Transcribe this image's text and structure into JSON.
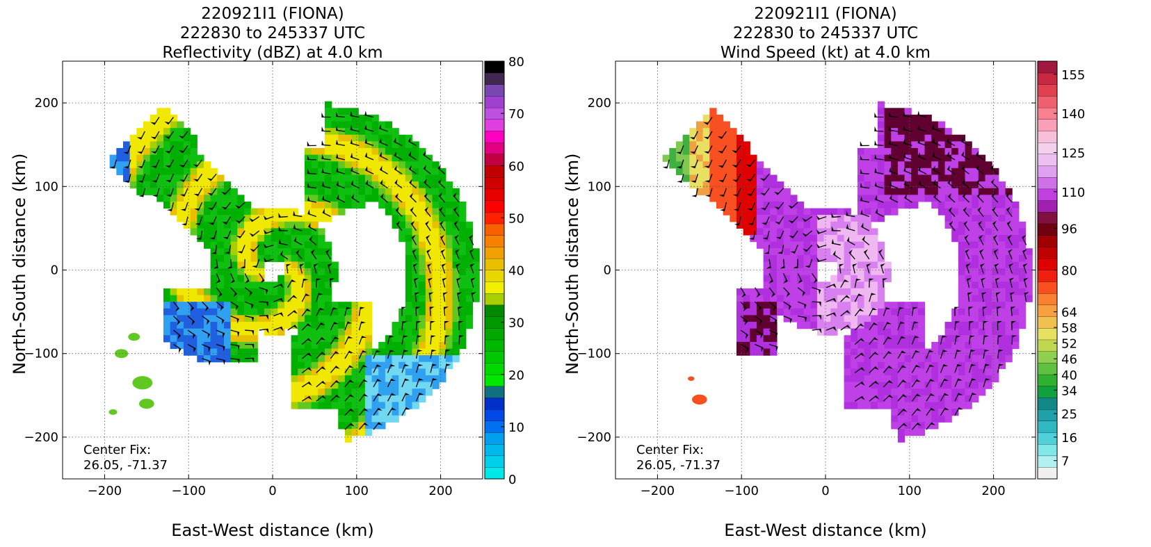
{
  "chart_data": [
    {
      "type": "heatmap",
      "title_lines": [
        "220921I1 (FIONA)",
        "222830 to 245337 UTC",
        "Reflectivity (dBZ) at 4.0 km"
      ],
      "xlabel": "East-West distance (km)",
      "ylabel": "North-South distance (km)",
      "xlim": [
        -250,
        250
      ],
      "ylim": [
        -250,
        250
      ],
      "xticks": [
        -200,
        -100,
        0,
        100,
        200
      ],
      "yticks": [
        -200,
        -100,
        0,
        100,
        200
      ],
      "grid": true,
      "annotation": [
        "Center Fix:",
        "26.05, -71.37"
      ],
      "colorbar": {
        "label_values": [
          0,
          10,
          20,
          30,
          40,
          50,
          60,
          70,
          80
        ],
        "range": [
          0,
          80
        ],
        "colors": [
          "#00e8e8",
          "#00d0ea",
          "#00b8ec",
          "#00a0f0",
          "#0070f0",
          "#0048e8",
          "#0030c8",
          "#107080",
          "#00e800",
          "#00d800",
          "#00c800",
          "#00b800",
          "#00a800",
          "#009800",
          "#008800",
          "#a8d000",
          "#f0f000",
          "#e8d800",
          "#e8c000",
          "#f0a000",
          "#f88000",
          "#f86000",
          "#ff2000",
          "#ff0000",
          "#e80000",
          "#d00000",
          "#c00000",
          "#c00040",
          "#e00080",
          "#ff00c0",
          "#e040e0",
          "#c050e0",
          "#a040d0",
          "#7848b0",
          "#402850",
          "#000000"
        ]
      },
      "field_colors": [
        "#00b000",
        "#10c010",
        "#60c820",
        "#a8d000",
        "#f0e800",
        "#e8c000",
        "#2060e0",
        "#30a0f0",
        "#70d8f0"
      ]
    },
    {
      "type": "heatmap",
      "title_lines": [
        "220921I1 (FIONA)",
        "222830 to 245337 UTC",
        "Wind Speed (kt) at 4.0 km"
      ],
      "xlabel": "East-West distance (km)",
      "ylabel": "North-South distance (km)",
      "xlim": [
        -250,
        250
      ],
      "ylim": [
        -250,
        250
      ],
      "xticks": [
        -200,
        -100,
        0,
        100,
        200
      ],
      "yticks": [
        -200,
        -100,
        0,
        100,
        200
      ],
      "grid": true,
      "annotation": [
        "Center Fix:",
        "26.05, -71.37"
      ],
      "colorbar": {
        "label_values": [
          7,
          16,
          25,
          34,
          40,
          46,
          52,
          58,
          64,
          80,
          96,
          110,
          125,
          140,
          155
        ],
        "range": [
          0,
          160
        ],
        "colors": [
          "#f0f0f0",
          "#b0f0f0",
          "#80e8e8",
          "#50d0d8",
          "#30b8c0",
          "#20a0a8",
          "#108888",
          "#10a040",
          "#30b030",
          "#60c040",
          "#90d050",
          "#c0d850",
          "#e8e060",
          "#f0c050",
          "#f8a040",
          "#f88030",
          "#f85020",
          "#f02010",
          "#e00000",
          "#c00000",
          "#a00000",
          "#700010",
          "#801040",
          "#a020b0",
          "#c040e0",
          "#d070e8",
          "#e0a0f0",
          "#ecc0f0",
          "#f4d0ec",
          "#f8c0d8",
          "#f8a0b8",
          "#f88090",
          "#f06070",
          "#e04050",
          "#c82840",
          "#a01840"
        ]
      },
      "field_colors": [
        "#c040e8",
        "#b030e0",
        "#d880f0",
        "#f0b8f0",
        "#600030",
        "#e00000",
        "#f85020",
        "#f0a040",
        "#e8e060",
        "#80c850",
        "#40b040"
      ]
    }
  ]
}
